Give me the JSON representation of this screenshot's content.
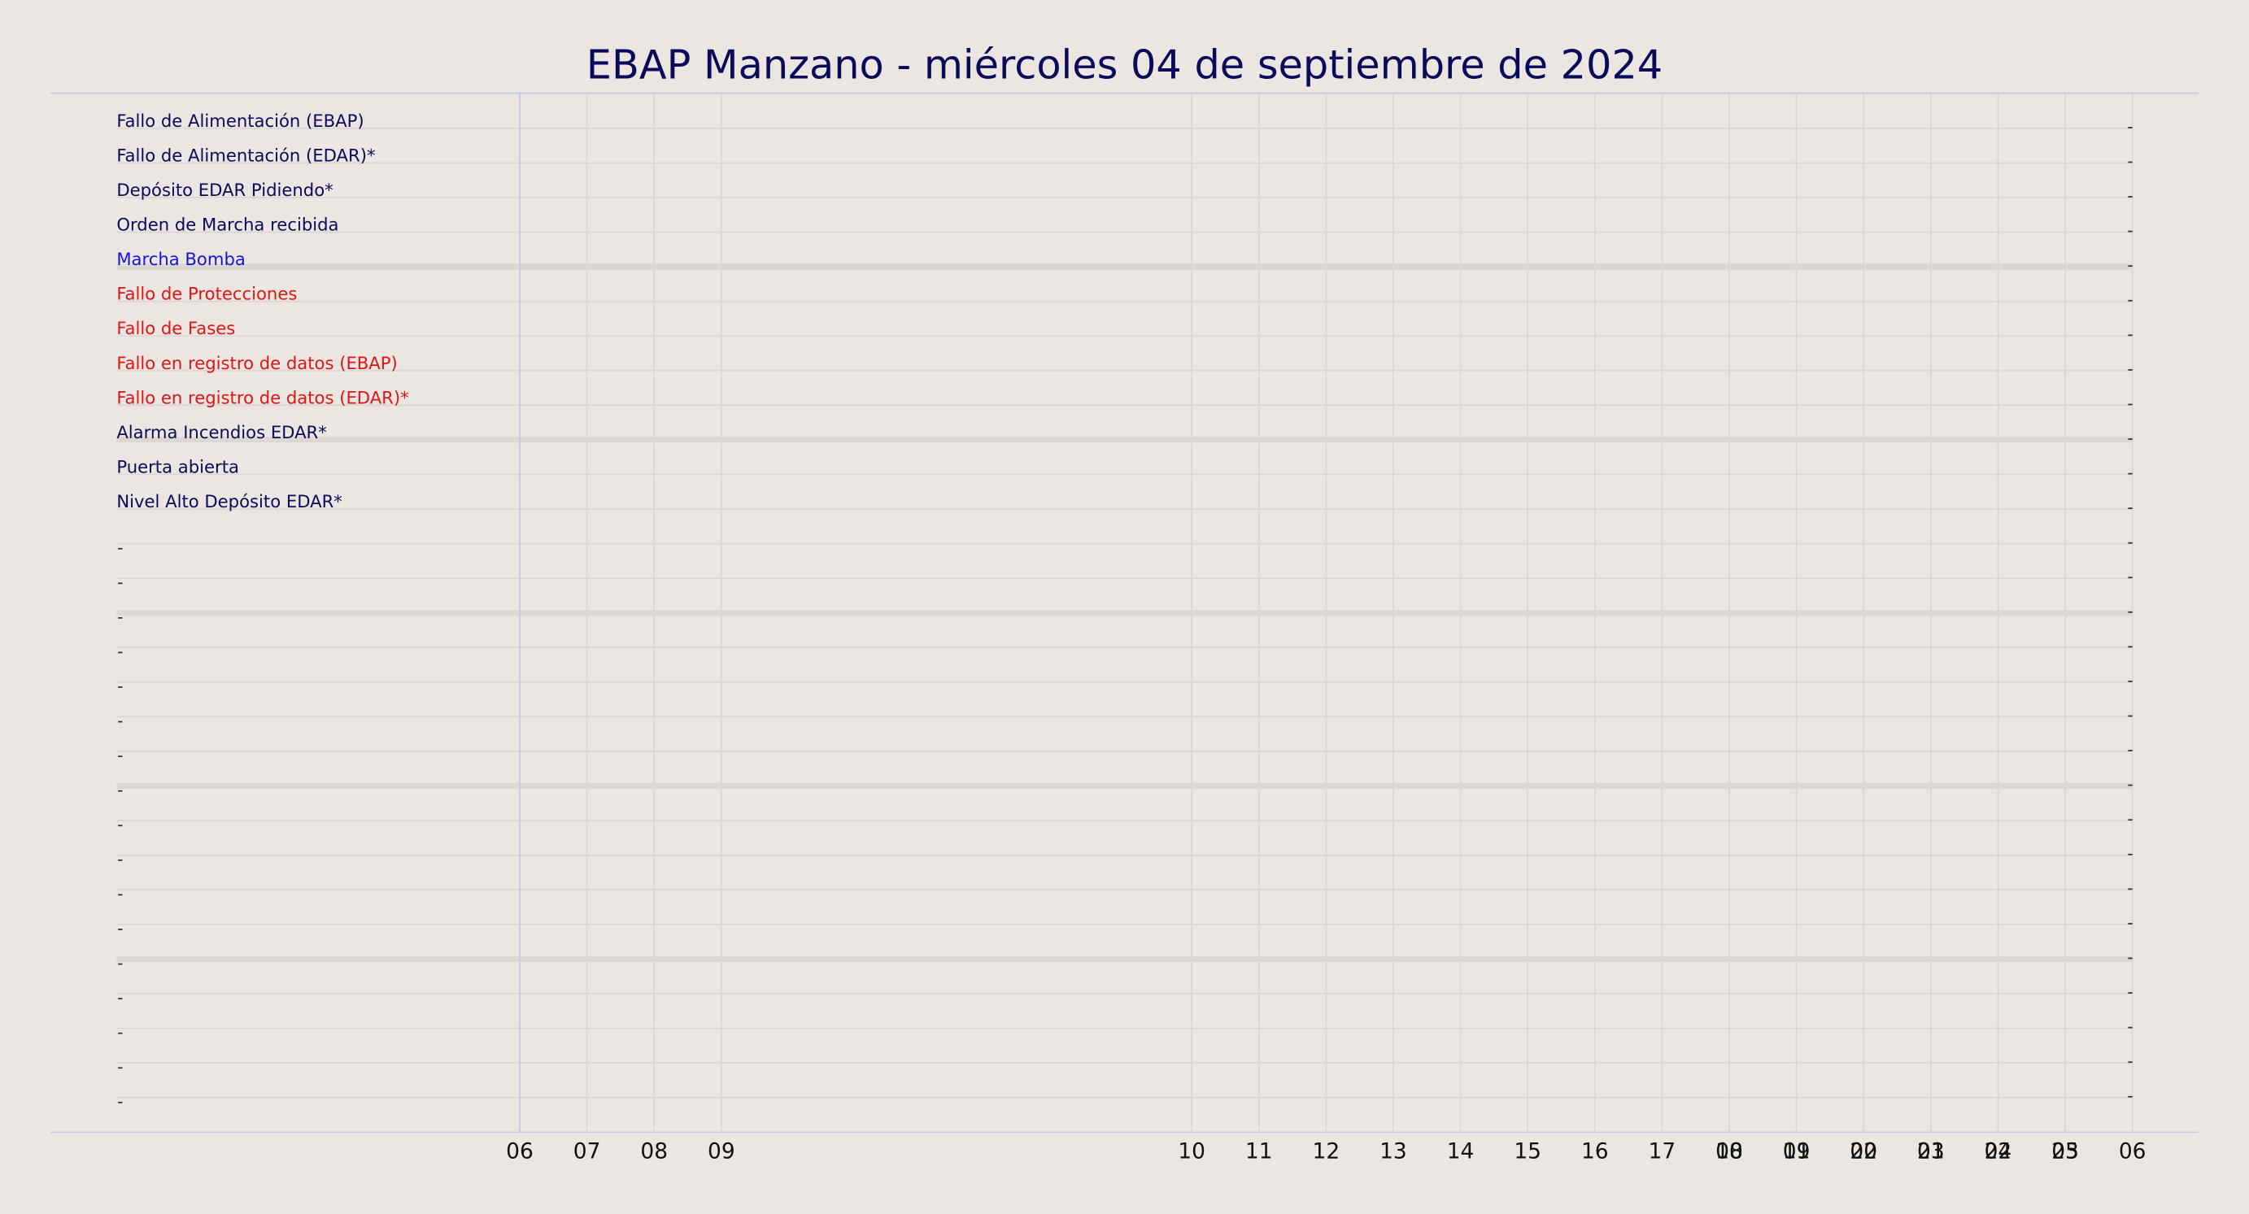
{
  "chart_data": {
    "type": "timeline",
    "title": "EBAP Manzano   -   miércoles 04 de septiembre de 2024",
    "categories": [
      "Fallo de Alimentación (EBAP)",
      "Fallo de Alimentación (EDAR)*",
      "Depósito EDAR Pidiendo*",
      "Orden de Marcha recibida",
      "Marcha Bomba",
      "Fallo de Protecciones",
      "Fallo de Fases",
      "Fallo en registro de datos (EBAP)",
      "Fallo en registro de datos (EDAR)*",
      "Alarma Incendios EDAR*",
      "Puerta abierta",
      "Nivel Alto Depósito EDAR*",
      null,
      null,
      null,
      null,
      null,
      null,
      null,
      null,
      null,
      null,
      null,
      null,
      null,
      null,
      null,
      null,
      null
    ],
    "label_colors": [
      "#0a0a5a",
      "#0a0a5a",
      "#0a0a5a",
      "#0a0a5a",
      "#1414dc",
      "#e01414",
      "#e01414",
      "#e01414",
      "#e01414",
      "#0a0a5a",
      "#0a0a5a",
      "#0a0a5a",
      null,
      null,
      null,
      null,
      null,
      null,
      null,
      null,
      null,
      null,
      null,
      null,
      null,
      null,
      null,
      null,
      null
    ],
    "xlim": [
      -6,
      24
    ],
    "xticks": [
      {
        "value": 0,
        "label": "06"
      },
      {
        "value": 1,
        "label": "07"
      },
      {
        "value": 2,
        "label": "08"
      },
      {
        "value": 3,
        "label": "09"
      },
      10,
      11,
      12,
      13,
      14,
      15,
      16,
      17,
      18,
      19,
      20,
      21,
      22,
      23,
      {
        "value": 18,
        "label": "00"
      },
      {
        "value": 19,
        "label": "01"
      },
      {
        "value": 20,
        "label": "02"
      },
      {
        "value": 21,
        "label": "03"
      },
      {
        "value": 22,
        "label": "04"
      },
      {
        "value": 23,
        "label": "05"
      },
      {
        "value": 24,
        "label": "06"
      }
    ],
    "grid": true
  }
}
